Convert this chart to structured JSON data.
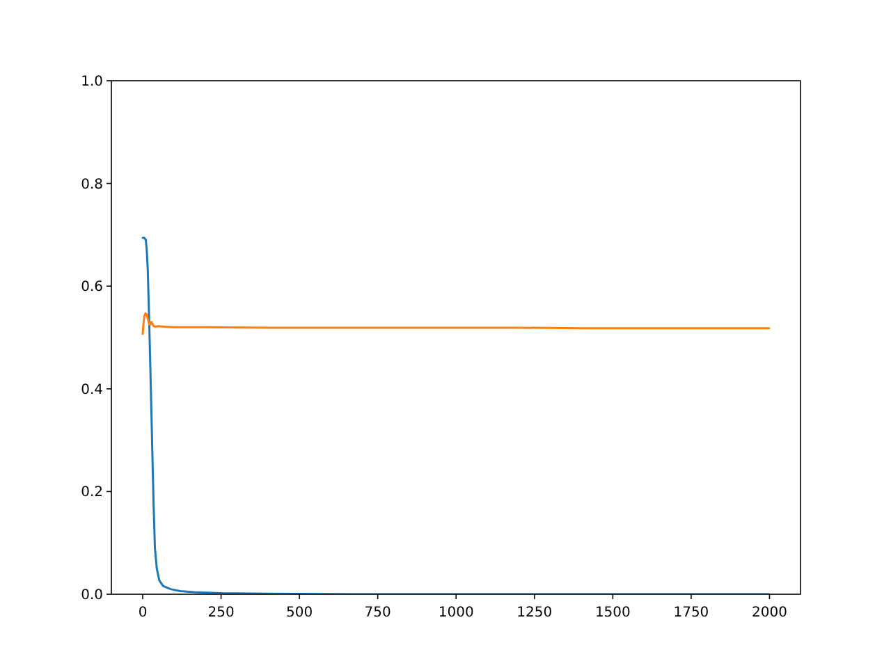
{
  "chart_data": {
    "type": "line",
    "xlim": [
      -99.95,
      2098.95
    ],
    "ylim": [
      0,
      1
    ],
    "xticks": [
      0,
      250,
      500,
      750,
      1000,
      1250,
      1500,
      1750,
      2000
    ],
    "yticks": [
      {
        "value": 0,
        "label": "0.0"
      },
      {
        "value": 0.2,
        "label": "0.2"
      },
      {
        "value": 0.4,
        "label": "0.4"
      },
      {
        "value": 0.6,
        "label": "0.6"
      },
      {
        "value": 0.8,
        "label": "0.8"
      },
      {
        "value": 1,
        "label": "1.0"
      }
    ],
    "series": [
      {
        "color": "#1f77b4",
        "x": [
          0,
          5,
          10,
          13,
          16,
          20,
          24,
          28,
          31,
          35,
          39,
          45,
          53,
          65,
          89,
          120,
          164,
          250,
          400,
          700,
          1000,
          1500,
          1999
        ],
        "values": [
          0.694,
          0.694,
          0.69,
          0.67,
          0.634,
          0.55,
          0.45,
          0.35,
          0.27,
          0.17,
          0.09,
          0.05,
          0.027,
          0.016,
          0.01,
          0.006,
          0.004,
          0.002,
          0.001,
          0,
          0,
          0,
          0
        ]
      },
      {
        "color": "#ff7f0e",
        "x": [
          0,
          3,
          6,
          9,
          13,
          17,
          21,
          24,
          28,
          31,
          35,
          40,
          50,
          70,
          100,
          200,
          400,
          600,
          800,
          1000,
          1200,
          1400,
          1600,
          1800,
          1999
        ],
        "values": [
          0.507,
          0.53,
          0.543,
          0.547,
          0.545,
          0.535,
          0.526,
          0.525,
          0.53,
          0.527,
          0.522,
          0.521,
          0.522,
          0.521,
          0.52,
          0.52,
          0.519,
          0.519,
          0.519,
          0.519,
          0.519,
          0.518,
          0.518,
          0.518,
          0.518
        ]
      }
    ]
  }
}
